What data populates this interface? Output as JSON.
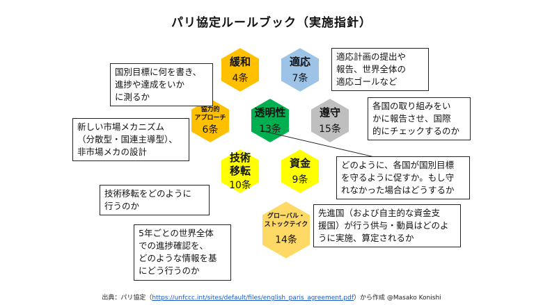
{
  "title": "パリ協定ルールブック（実施指針）",
  "colors": {
    "orange": "#ffc000",
    "blue": "#9dc3e6",
    "green": "#00b050",
    "gray": "#bfbfbf",
    "yellow": "#ffff00",
    "light_orange": "#ffd966"
  },
  "hexes": {
    "kanwa": {
      "name": "緩和",
      "article": "4条"
    },
    "tekio": {
      "name": "適応",
      "article": "7条"
    },
    "kyoryoku": {
      "name_line1": "協力的",
      "name_line2": "アプローチ",
      "article": "6条"
    },
    "tomeisei": {
      "name": "透明性",
      "article": "13条"
    },
    "junshu": {
      "name": "遵守",
      "article": "15条"
    },
    "gijutsu": {
      "name_line1": "技術",
      "name_line2": "移転",
      "article": "10条"
    },
    "shikin": {
      "name": "資金",
      "article": "9条"
    },
    "global": {
      "name_line1": "グローバル・",
      "name_line2": "ストックテイク",
      "article": "14条"
    }
  },
  "boxes": {
    "kanwa": [
      "国別目標に何を書き、",
      "進捗や達成をいか",
      "に測るか"
    ],
    "tekio": [
      "適応計画の提出や",
      "報告、世界全体の",
      "適応ゴールなど"
    ],
    "junshu": [
      "各国の取り組みをい",
      "かに報告させ、国際",
      "的にチェックするのか"
    ],
    "kyoryoku": [
      "新しい市場メカニズム",
      "（分散型・国連主導型）、",
      "非市場メカの設計"
    ],
    "tomeisei": [
      "どのように、各国が国別目標",
      "を守るように促すか。もし守",
      "れなかった場合はどうするか"
    ],
    "gijutsu": [
      "技術移転をどのように",
      "行うのか"
    ],
    "shikin": [
      "先進国（および自主的な資金支",
      "援国）が行う供与・動員はどのよ",
      "うに実施、算定されるか"
    ],
    "global": [
      "5年ごとの世界全体",
      "での進捗確認を、",
      "どのような情報を基",
      "にどう行うのか"
    ]
  },
  "source": {
    "prefix": "出典：パリ協定（",
    "url": "https://unfccc.int/sites/default/files/english_paris_agreement.pdf",
    "suffix": "）から作成 @Masako Konishi"
  }
}
